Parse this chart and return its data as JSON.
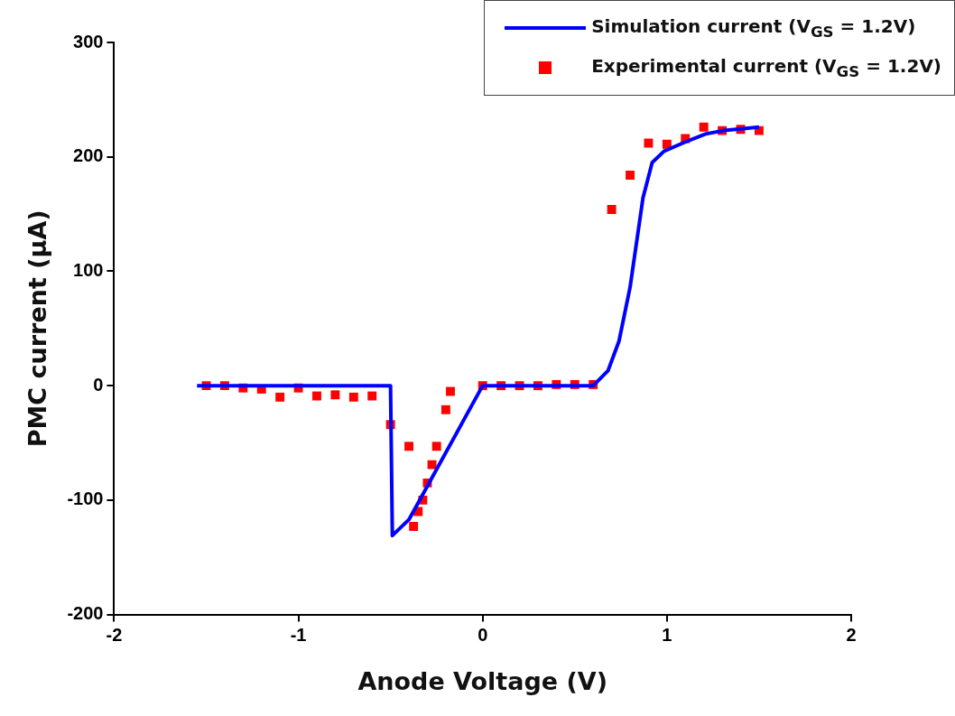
{
  "chart_data": {
    "type": "scatter",
    "xlabel": "Anode Voltage (V)",
    "ylabel": "PMC current (μA)",
    "xlim": [
      -2,
      2
    ],
    "xticks": [
      -2,
      -1,
      0,
      1,
      2
    ],
    "ylim": [
      -200,
      300
    ],
    "yticks": [
      -200,
      -100,
      0,
      100,
      200,
      300
    ],
    "grid": false,
    "legend": "top right",
    "series": [
      {
        "name": "Simulation current (V$_{GS}$ = 1.2V)",
        "type": "line",
        "color": "#0000ff",
        "line_style": "solid",
        "marker": "none",
        "x": [
          -1.55,
          -0.5,
          -0.49,
          -0.4,
          0,
          0.6,
          0.68,
          0.74,
          0.8,
          0.87,
          0.92,
          0.985,
          1.1,
          1.21,
          1.31,
          1.5
        ],
        "values": [
          0,
          0,
          -131,
          -117,
          0,
          0,
          13,
          39,
          86,
          164,
          195,
          205,
          213,
          220,
          223,
          226
        ]
      },
      {
        "name": "Experimental current (V$_{GS}$ = 1.2V)",
        "type": "scatter",
        "color": "#ff0000",
        "marker": "square",
        "x": [
          -1.5,
          -1.4,
          -1.3,
          -1.2,
          -1.1,
          -1.0,
          -0.9,
          -0.8,
          -0.7,
          -0.6,
          -0.5,
          -0.4,
          -0.375,
          -0.35,
          -0.325,
          -0.3,
          -0.275,
          -0.25,
          -0.2,
          -0.175,
          0,
          0.1,
          0.2,
          0.3,
          0.4,
          0.5,
          0.6,
          0.7,
          0.8,
          0.9,
          1.0,
          1.1,
          1.2,
          1.3,
          1.4,
          1.5
        ],
        "values": [
          0,
          0,
          -2,
          -3,
          -10,
          -2,
          -9,
          -8,
          -10,
          -9,
          -34,
          -53,
          -123,
          -110,
          -100,
          -85,
          -69,
          -53,
          -21,
          -5,
          0,
          0,
          0,
          0,
          1,
          1,
          1,
          154,
          184,
          212,
          211,
          216,
          226,
          223,
          224,
          223
        ]
      }
    ]
  }
}
